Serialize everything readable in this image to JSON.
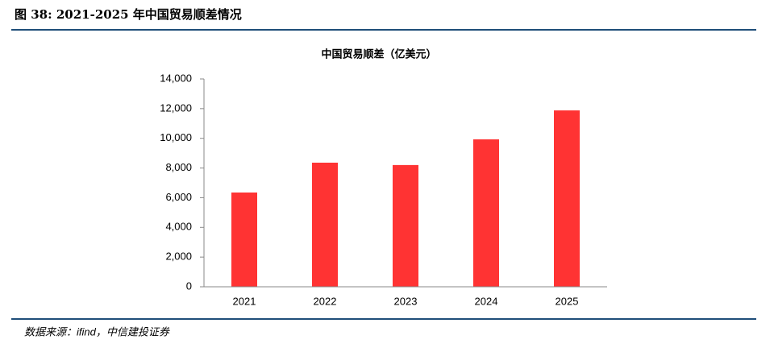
{
  "header": {
    "title": "图 38: 2021-2025 年中国贸易顺差情况"
  },
  "source": "数据来源：ifind，中信建投证券",
  "chart_data": {
    "type": "bar",
    "title": "中国贸易顺差（亿美元）",
    "categories": [
      "2021",
      "2022",
      "2023",
      "2024",
      "2025"
    ],
    "values": [
      6350,
      8360,
      8200,
      9930,
      11880
    ],
    "color": "#ff3333",
    "ylim": [
      0,
      14000
    ],
    "yticks": [
      0,
      {
        "value": 2000,
        "label": "2,000"
      },
      {
        "value": 4000,
        "label": "4,000"
      },
      {
        "value": 6000,
        "label": "6,000"
      },
      {
        "value": 8000,
        "label": "8,000"
      },
      {
        "value": 10000,
        "label": "10,000"
      },
      {
        "value": 12000,
        "label": "12,000"
      },
      {
        "value": 14000,
        "label": "14,000"
      }
    ],
    "grid": false
  }
}
